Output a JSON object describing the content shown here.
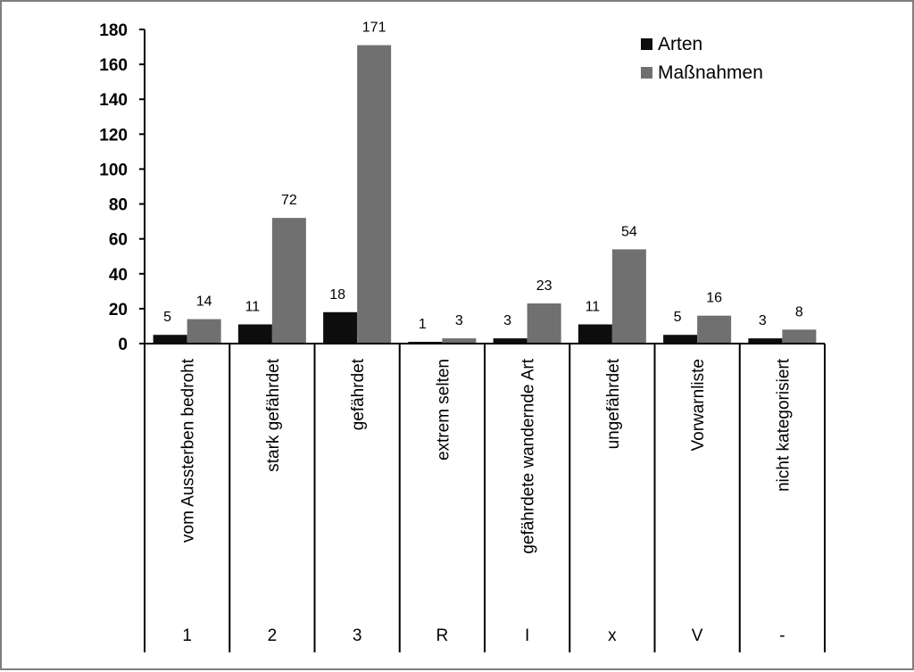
{
  "chart_data": {
    "type": "bar",
    "categories": [
      "vom Aussterben bedroht",
      "stark gefährdet",
      "gefährdet",
      "extrem selten",
      "gefährdete wandernde Art",
      "ungefährdet",
      "Vorwarnliste",
      "nicht kategorisiert"
    ],
    "category_codes": [
      "1",
      "2",
      "3",
      "R",
      "I",
      "x",
      "V",
      "-"
    ],
    "series": [
      {
        "name": "Arten",
        "color": "#0d0d0d",
        "values": [
          5,
          11,
          18,
          1,
          3,
          11,
          5,
          3
        ]
      },
      {
        "name": "Maßnahmen",
        "color": "#707070",
        "values": [
          14,
          72,
          171,
          3,
          23,
          54,
          16,
          8
        ]
      }
    ],
    "ylim": [
      0,
      180
    ],
    "yticks": [
      0,
      20,
      40,
      60,
      80,
      100,
      120,
      140,
      160,
      180
    ],
    "grid": false,
    "legend_position": "top-right",
    "data_labels": true
  }
}
